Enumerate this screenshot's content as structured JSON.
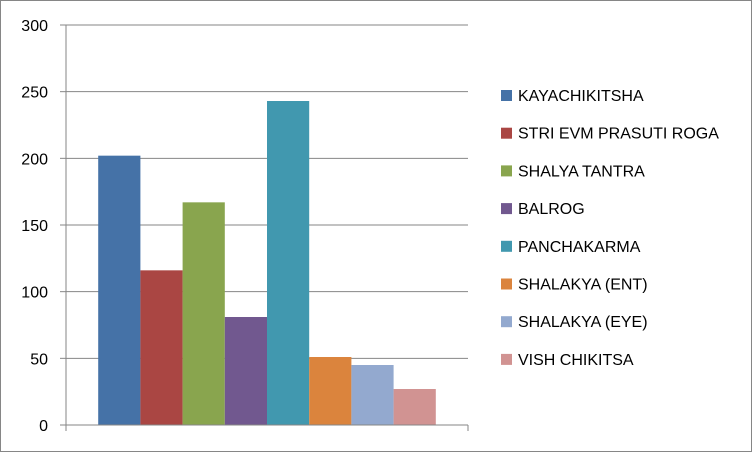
{
  "chart_data": {
    "type": "bar",
    "title": "",
    "xlabel": "",
    "ylabel": "",
    "ylim": [
      0,
      300
    ],
    "yticks": [
      0,
      50,
      100,
      150,
      200,
      250,
      300
    ],
    "grid": true,
    "legend_position": "right",
    "categories": [
      ""
    ],
    "series": [
      {
        "name": "KAYACHIKITSHA",
        "values": [
          202
        ],
        "color": "#4572A7"
      },
      {
        "name": "STRI EVM PRASUTI ROGA",
        "values": [
          116
        ],
        "color": "#AA4643"
      },
      {
        "name": "SHALYA TANTRA",
        "values": [
          167
        ],
        "color": "#89A54E"
      },
      {
        "name": "BALROG",
        "values": [
          81
        ],
        "color": "#71588F"
      },
      {
        "name": "PANCHAKARMA",
        "values": [
          243
        ],
        "color": "#4198AF"
      },
      {
        "name": "SHALAKYA (ENT)",
        "values": [
          51
        ],
        "color": "#DB843D"
      },
      {
        "name": "SHALAKYA (EYE)",
        "values": [
          45
        ],
        "color": "#93A9CF"
      },
      {
        "name": "VISH CHIKITSA",
        "values": [
          27
        ],
        "color": "#D19392"
      }
    ]
  }
}
